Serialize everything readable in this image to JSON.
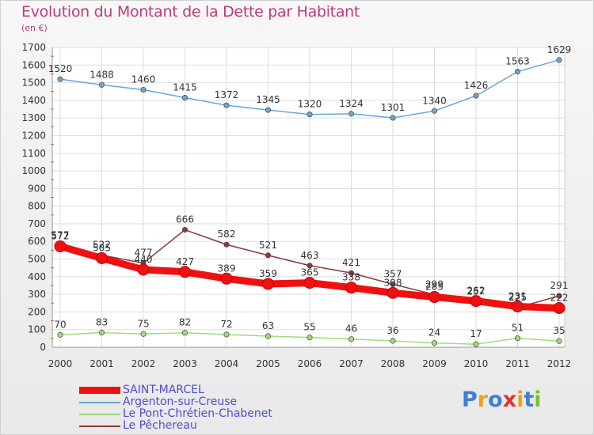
{
  "chart_data": {
    "type": "line",
    "title": "Evolution du Montant de la Dette par Habitant",
    "subtitle": "(en €)",
    "x": [
      "2000",
      "2001",
      "2002",
      "2003",
      "2004",
      "2005",
      "2006",
      "2007",
      "2008",
      "2009",
      "2010",
      "2011",
      "2012"
    ],
    "ylim": [
      0,
      1700
    ],
    "yticks": [
      0,
      100,
      200,
      300,
      400,
      500,
      600,
      700,
      800,
      900,
      1000,
      1100,
      1200,
      1300,
      1400,
      1500,
      1600,
      1700
    ],
    "grid": true,
    "legend_position": "bottom-left",
    "series": [
      {
        "name": "SAINT-MARCEL",
        "color": "#ee1111",
        "values": [
          572,
          505,
          440,
          427,
          389,
          359,
          365,
          338,
          308,
          285,
          262,
          231,
          222
        ]
      },
      {
        "name": "Argenton-sur-Creuse",
        "color": "#6aa6d6",
        "values": [
          1520,
          1488,
          1460,
          1415,
          1372,
          1345,
          1320,
          1324,
          1301,
          1340,
          1426,
          1563,
          1629
        ]
      },
      {
        "name": "Le Pont-Chrétien-Chabenet",
        "color": "#9fdc7a",
        "values": [
          70,
          83,
          75,
          82,
          72,
          63,
          55,
          46,
          36,
          24,
          17,
          51,
          35
        ]
      },
      {
        "name": "Le Pêchereau",
        "color": "#8a3c3c",
        "values": [
          577,
          522,
          477,
          666,
          582,
          521,
          463,
          421,
          357,
          299,
          257,
          225,
          291
        ]
      }
    ]
  },
  "logo": {
    "text": "Proxiti",
    "colors": [
      "#3d7fd6",
      "#f0a020",
      "#3d7fd6",
      "#e03030",
      "#f0a020",
      "#3d7fd6",
      "#80c030"
    ]
  }
}
